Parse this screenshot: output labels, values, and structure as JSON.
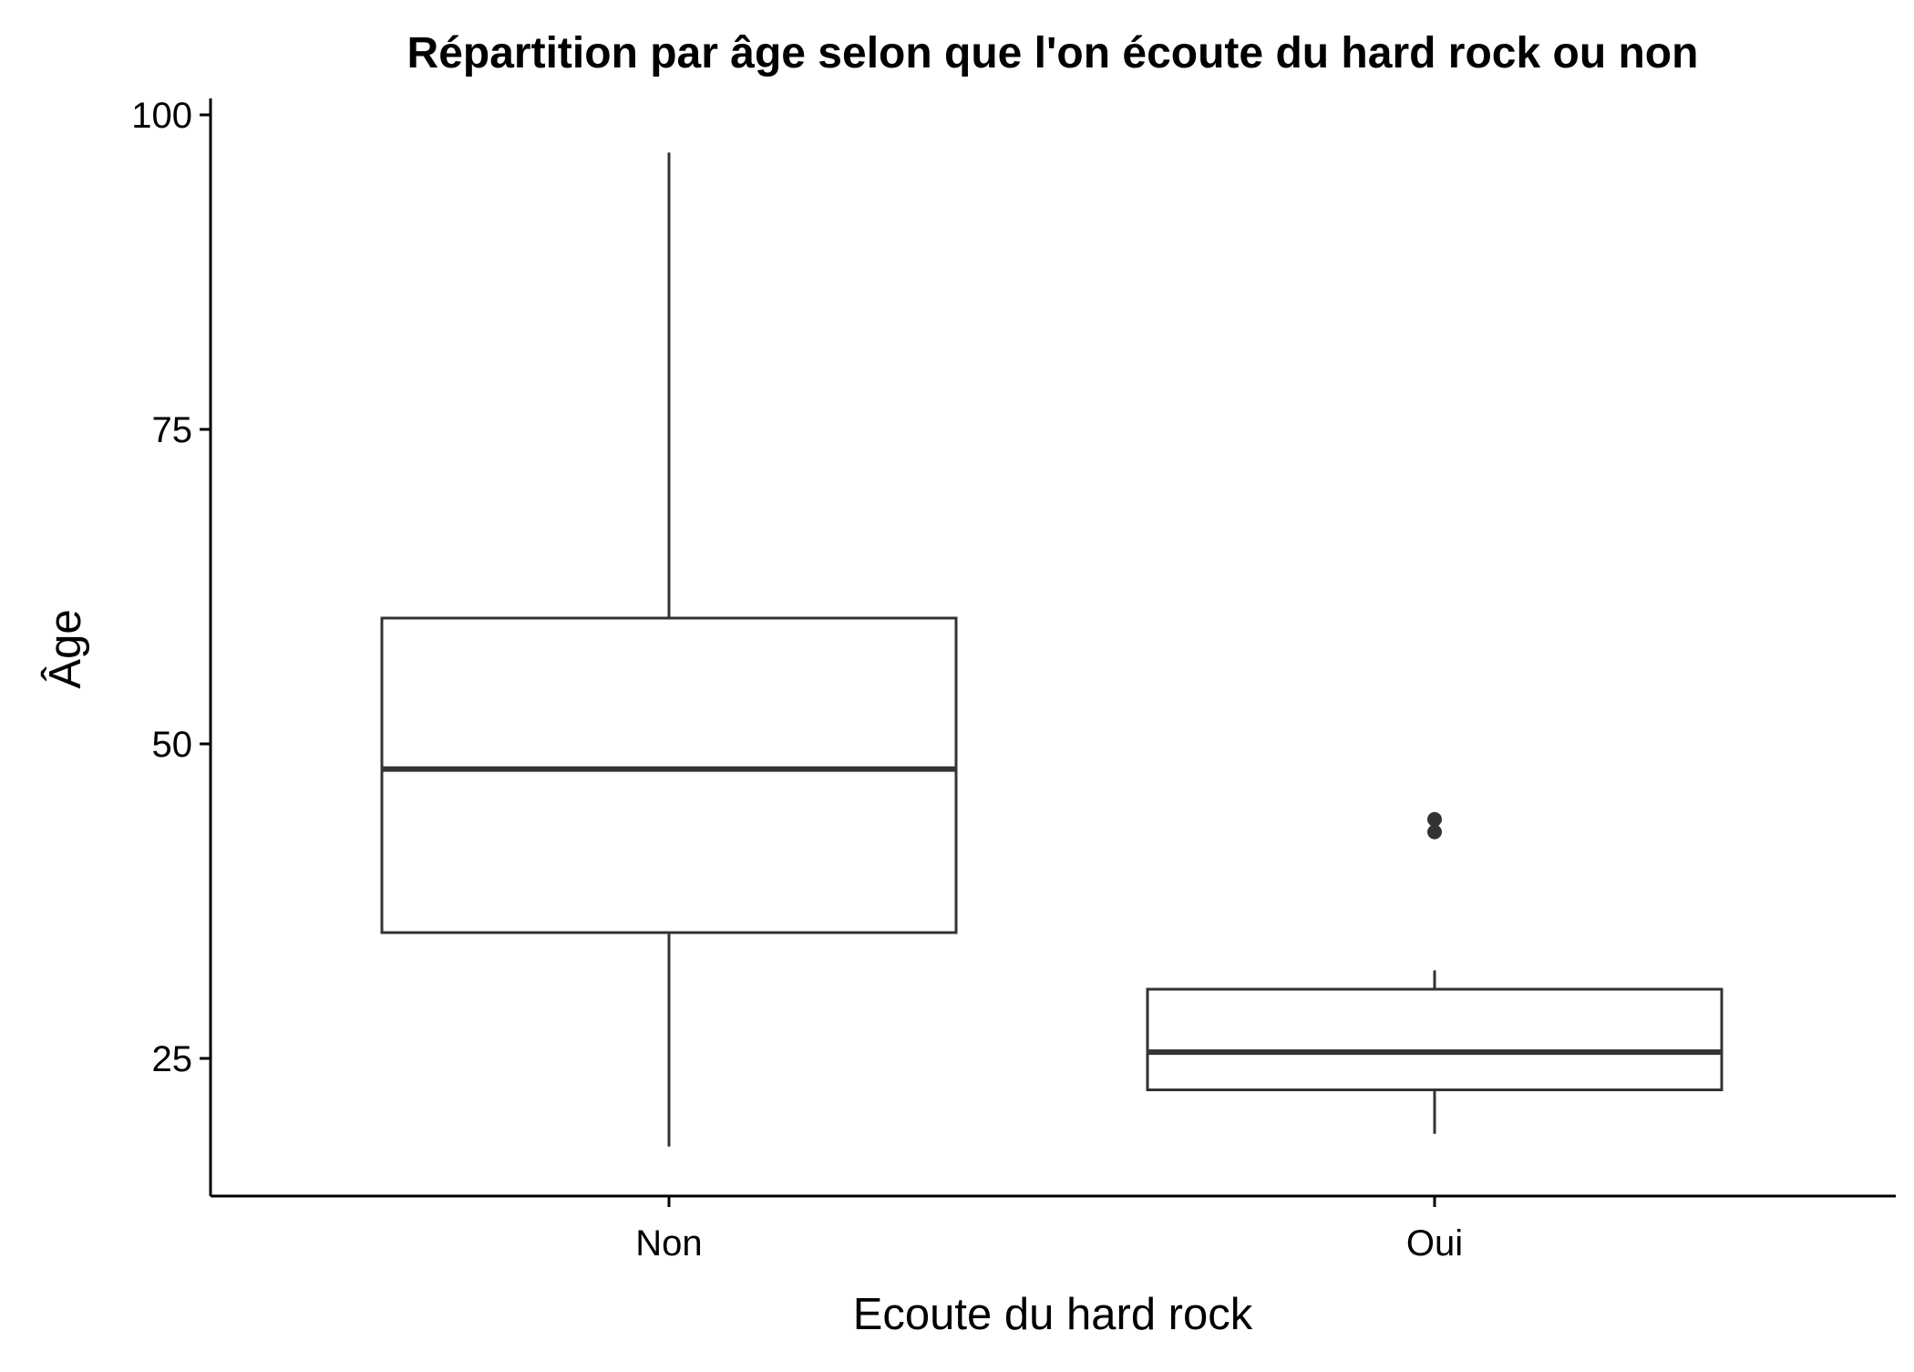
{
  "chart_data": {
    "type": "boxplot",
    "title": "Répartition par âge selon que l'on écoute du hard rock ou non",
    "xlabel": "Ecoute du hard rock",
    "ylabel": "Âge",
    "categories": [
      "Non",
      "Oui"
    ],
    "boxes": [
      {
        "category": "Non",
        "whisker_low": 18,
        "q1": 35,
        "median": 48,
        "q3": 60,
        "whisker_high": 97,
        "outliers": []
      },
      {
        "category": "Oui",
        "whisker_low": 19,
        "q1": 22.5,
        "median": 25.5,
        "q3": 30.5,
        "whisker_high": 32,
        "outliers": [
          43,
          44
        ]
      }
    ],
    "ylim": [
      14,
      101
    ],
    "yticks": [
      25,
      50,
      75,
      100
    ],
    "grid": false,
    "colors": {
      "box_stroke": "#333333",
      "box_fill": "#ffffff",
      "axis": "#000000"
    }
  }
}
